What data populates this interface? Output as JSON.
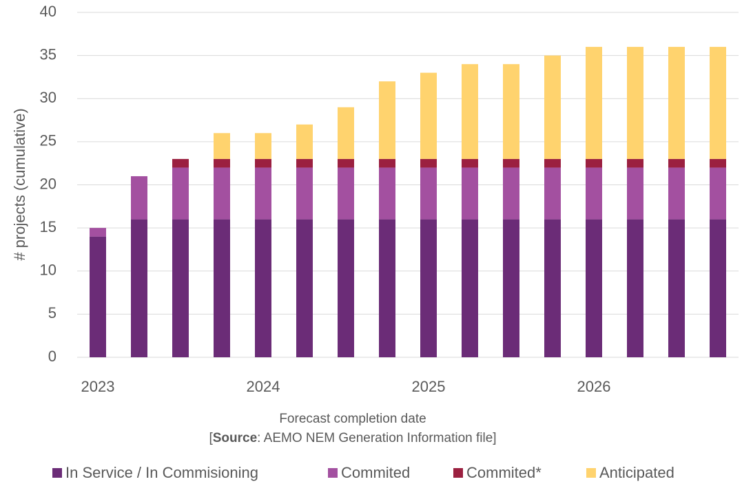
{
  "chart_data": {
    "type": "stacked_bar",
    "y_axis_label": "# projects (cumulative)",
    "x_axis_label": "Forecast completion date",
    "note": [
      "[",
      "Source",
      ": AEMO NEM Generation Information file]"
    ],
    "categories": [
      "2023",
      null,
      null,
      null,
      "2024",
      null,
      null,
      null,
      "2025",
      null,
      null,
      null,
      "2026",
      null,
      null,
      null
    ],
    "series": [
      {
        "name": "In Service / In Commisioning",
        "color": "#6b2c77",
        "values": [
          14,
          16,
          16,
          16,
          16,
          16,
          16,
          16,
          16,
          16,
          16,
          16,
          16,
          16,
          16,
          16
        ]
      },
      {
        "name": "Commited",
        "color": "#a350a0",
        "values": [
          1,
          5,
          6,
          6,
          6,
          6,
          6,
          6,
          6,
          6,
          6,
          6,
          6,
          6,
          6,
          6
        ]
      },
      {
        "name": "Commited*",
        "color": "#9b2040",
        "values": [
          0,
          0,
          1,
          1,
          1,
          1,
          1,
          1,
          1,
          1,
          1,
          1,
          1,
          1,
          1,
          1
        ]
      },
      {
        "name": "Anticipated",
        "color": "#ffd36e",
        "values": [
          0,
          0,
          0,
          3,
          3,
          4,
          6,
          9,
          10,
          11,
          11,
          12,
          13,
          13,
          13,
          13
        ]
      }
    ],
    "ylim": [
      0,
      40
    ],
    "yticks": [
      0,
      5,
      10,
      15,
      20,
      25,
      30,
      35,
      40
    ],
    "grid": true,
    "legend": "bottom"
  }
}
